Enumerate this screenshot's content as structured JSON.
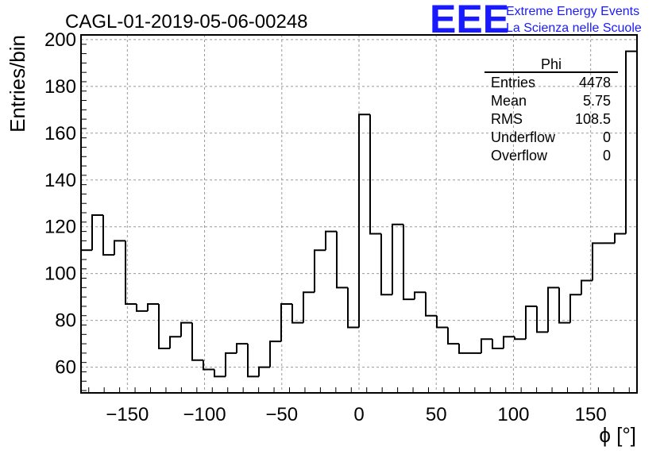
{
  "header": {
    "run_title": "CAGL-01-2019-05-06-00248",
    "logo_text": "EEE",
    "logo_line1": "Extreme Energy Events",
    "logo_line2": "La Scienza nelle Scuole"
  },
  "stats": {
    "name": "Phi",
    "rows": [
      {
        "label": "Entries",
        "value": "4478"
      },
      {
        "label": "Mean",
        "value": "5.75"
      },
      {
        "label": "RMS",
        "value": "108.5"
      },
      {
        "label": "Underflow",
        "value": "0"
      },
      {
        "label": "Overflow",
        "value": "0"
      }
    ]
  },
  "colors": {
    "logo": "#1a1aff",
    "line": "#000000",
    "grid": "#999999"
  },
  "chart_data": {
    "type": "bar",
    "histogram": "step",
    "title": "CAGL-01-2019-05-06-00248",
    "xlabel": "ϕ [°]",
    "ylabel": "Entries/bin",
    "xlim": [
      -180,
      180
    ],
    "ylim": [
      49,
      202
    ],
    "grid": true,
    "bin_width": 7.2,
    "x_ticks": [
      -150,
      -100,
      -50,
      0,
      50,
      100,
      150
    ],
    "x_tick_labels": [
      "−150",
      "−100",
      "−50",
      "0",
      "50",
      "100",
      "150"
    ],
    "y_ticks": [
      60,
      80,
      100,
      120,
      140,
      160,
      180,
      200
    ],
    "y_tick_labels": [
      "60",
      "80",
      "100",
      "120",
      "140",
      "160",
      "180",
      "200"
    ],
    "bin_edges_start": -180,
    "values": [
      110,
      125,
      108,
      114,
      87,
      84,
      87,
      68,
      73,
      79,
      63,
      59,
      56,
      66,
      70,
      56,
      60,
      71,
      87,
      79,
      92,
      110,
      118,
      94,
      77,
      168,
      117,
      91,
      121,
      89,
      92,
      82,
      77,
      70,
      66,
      66,
      72,
      68,
      73,
      72,
      86,
      75,
      94,
      79,
      91,
      97,
      113,
      113,
      117,
      195
    ]
  }
}
